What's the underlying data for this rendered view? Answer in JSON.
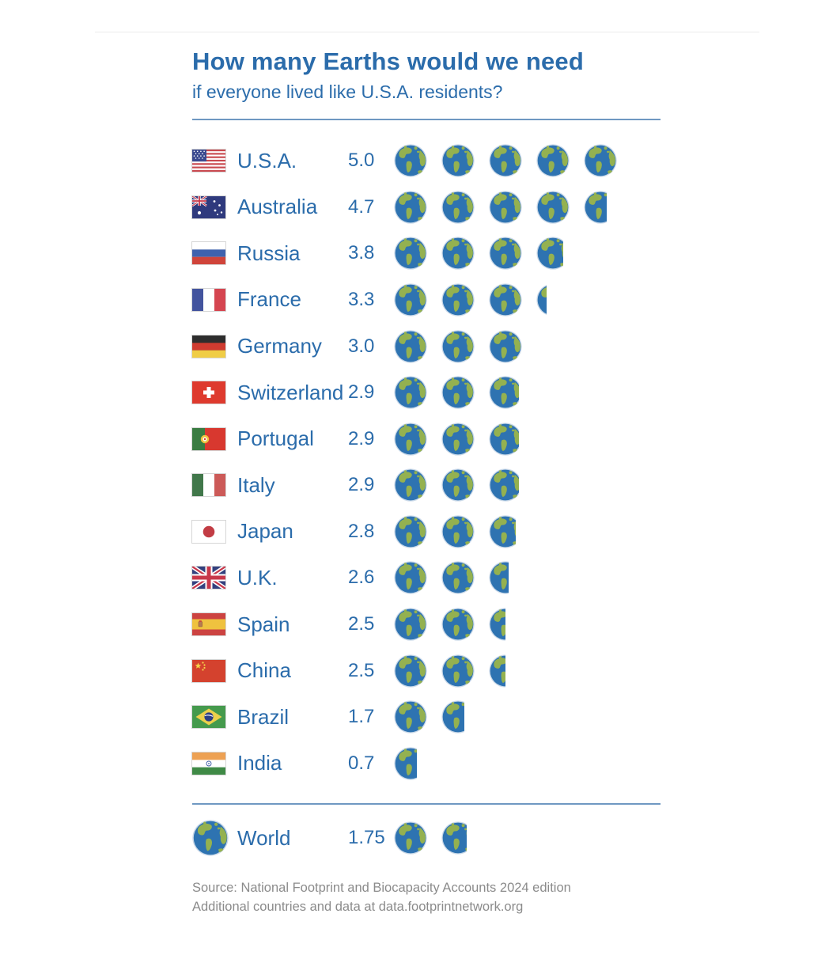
{
  "header": {
    "title": "How many Earths would we need",
    "subtitle": "if everyone lived like U.S.A. residents?"
  },
  "footer": {
    "source_line1": "Source: National Footprint and Biocapacity Accounts 2024 edition",
    "source_line2": "Additional countries and data at data.footprintnetwork.org"
  },
  "colors": {
    "accent_blue": "#2b6cab",
    "divider_blue": "#6f98c2",
    "earth_ocean": "#2e73b1",
    "earth_land": "#94b150",
    "earth_halo": "#c9d8e8",
    "source_gray": "#8b8b8b"
  },
  "chart_data": {
    "type": "pictogram",
    "title": "How many Earths would we need",
    "subtitle": "if everyone lived like U.S.A. residents?",
    "unit": "Earths",
    "icon": "earth-icon",
    "icon_unit_value": 1,
    "legend_position": "none",
    "categories": [
      "U.S.A.",
      "Australia",
      "Russia",
      "France",
      "Germany",
      "Switzerland",
      "Portugal",
      "Italy",
      "Japan",
      "U.K.",
      "Spain",
      "China",
      "Brazil",
      "India"
    ],
    "values": [
      5.0,
      4.7,
      3.8,
      3.3,
      3.0,
      2.9,
      2.9,
      2.9,
      2.8,
      2.6,
      2.5,
      2.5,
      1.7,
      0.7
    ],
    "rows": [
      {
        "country": "U.S.A.",
        "flag": "usa",
        "value": 5.0,
        "label": "5.0"
      },
      {
        "country": "Australia",
        "flag": "australia",
        "value": 4.7,
        "label": "4.7"
      },
      {
        "country": "Russia",
        "flag": "russia",
        "value": 3.8,
        "label": "3.8"
      },
      {
        "country": "France",
        "flag": "france",
        "value": 3.3,
        "label": "3.3"
      },
      {
        "country": "Germany",
        "flag": "germany",
        "value": 3.0,
        "label": "3.0"
      },
      {
        "country": "Switzerland",
        "flag": "switzerland",
        "value": 2.9,
        "label": "2.9"
      },
      {
        "country": "Portugal",
        "flag": "portugal",
        "value": 2.9,
        "label": "2.9"
      },
      {
        "country": "Italy",
        "flag": "italy",
        "value": 2.9,
        "label": "2.9"
      },
      {
        "country": "Japan",
        "flag": "japan",
        "value": 2.8,
        "label": "2.8"
      },
      {
        "country": "U.K.",
        "flag": "uk",
        "value": 2.6,
        "label": "2.6"
      },
      {
        "country": "Spain",
        "flag": "spain",
        "value": 2.5,
        "label": "2.5"
      },
      {
        "country": "China",
        "flag": "china",
        "value": 2.5,
        "label": "2.5"
      },
      {
        "country": "Brazil",
        "flag": "brazil",
        "value": 1.7,
        "label": "1.7"
      },
      {
        "country": "India",
        "flag": "india",
        "value": 0.7,
        "label": "0.7"
      }
    ],
    "world_row": {
      "country": "World",
      "flag": "earth",
      "value": 1.75,
      "label": "1.75"
    }
  }
}
